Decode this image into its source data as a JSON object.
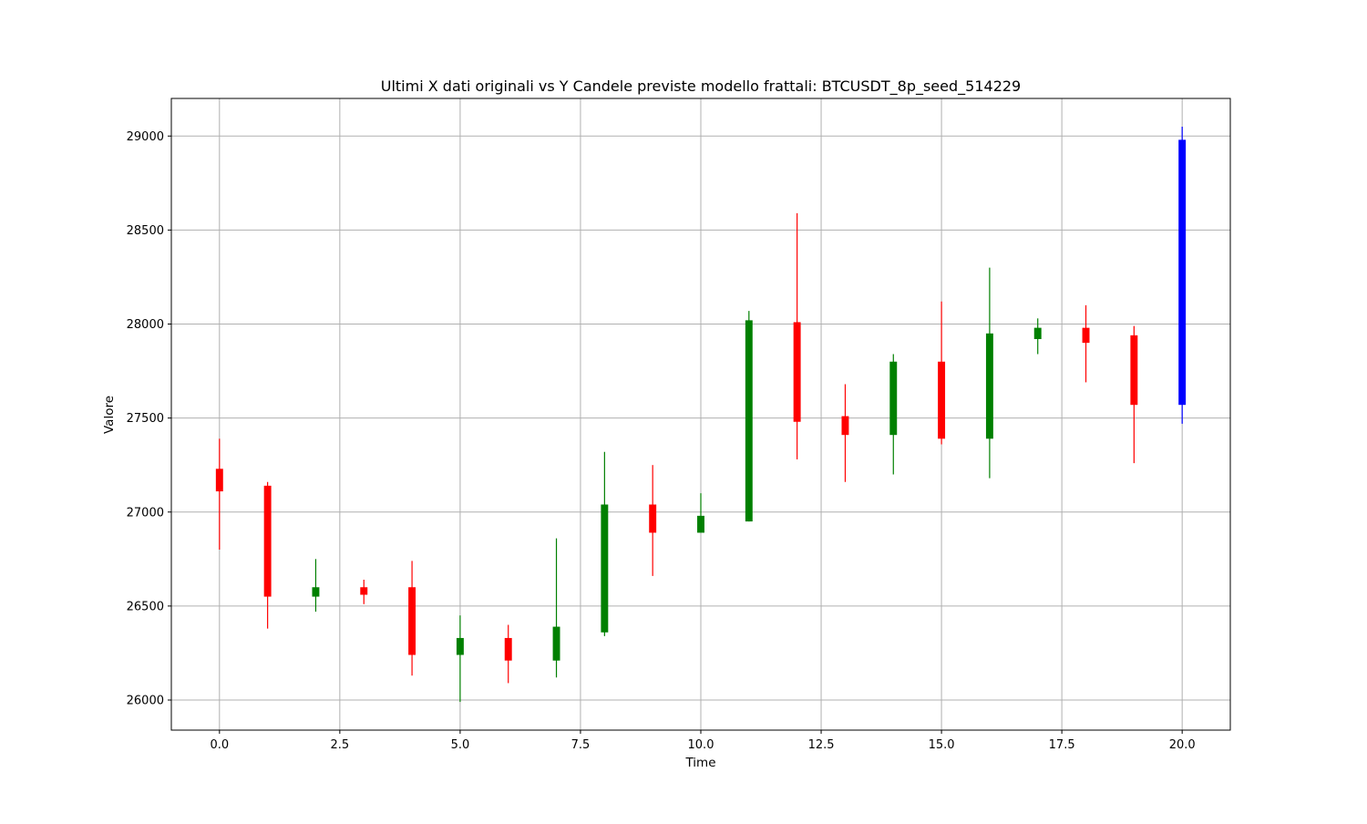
{
  "chart_data": {
    "type": "candlestick",
    "title": "Ultimi X dati originali vs Y Candele previste modello frattali: BTCUSDT_8p_seed_514229",
    "xlabel": "Time",
    "ylabel": "Valore",
    "xlim": [
      -1,
      21
    ],
    "ylim": [
      25840,
      29200
    ],
    "xticks": [
      0.0,
      2.5,
      5.0,
      7.5,
      10.0,
      12.5,
      15.0,
      17.5,
      20.0
    ],
    "xtick_labels": [
      "0.0",
      "2.5",
      "5.0",
      "7.5",
      "10.0",
      "12.5",
      "15.0",
      "17.5",
      "20.0"
    ],
    "yticks": [
      26000,
      26500,
      27000,
      27500,
      28000,
      28500,
      29000
    ],
    "ytick_labels": [
      "26000",
      "26500",
      "27000",
      "27500",
      "28000",
      "28500",
      "29000"
    ],
    "grid": true,
    "colors": {
      "up": "#008000",
      "down": "#ff0000",
      "predicted": "#0000ff",
      "grid": "#b0b0b0"
    },
    "candles": [
      {
        "x": 0,
        "open": 27230,
        "close": 27110,
        "high": 27390,
        "low": 26800,
        "color": "red"
      },
      {
        "x": 1,
        "open": 27140,
        "close": 26550,
        "high": 27160,
        "low": 26380,
        "color": "red"
      },
      {
        "x": 2,
        "open": 26550,
        "close": 26600,
        "high": 26750,
        "low": 26470,
        "color": "green"
      },
      {
        "x": 3,
        "open": 26600,
        "close": 26560,
        "high": 26640,
        "low": 26510,
        "color": "red"
      },
      {
        "x": 4,
        "open": 26600,
        "close": 26240,
        "high": 26740,
        "low": 26130,
        "color": "red"
      },
      {
        "x": 5,
        "open": 26240,
        "close": 26330,
        "high": 26450,
        "low": 25990,
        "color": "green"
      },
      {
        "x": 6,
        "open": 26330,
        "close": 26210,
        "high": 26400,
        "low": 26090,
        "color": "red"
      },
      {
        "x": 7,
        "open": 26210,
        "close": 26390,
        "high": 26860,
        "low": 26120,
        "color": "green"
      },
      {
        "x": 8,
        "open": 26360,
        "close": 27040,
        "high": 27320,
        "low": 26340,
        "color": "green"
      },
      {
        "x": 9,
        "open": 27040,
        "close": 26890,
        "high": 27250,
        "low": 26660,
        "color": "red"
      },
      {
        "x": 10,
        "open": 26890,
        "close": 26980,
        "high": 27100,
        "low": 26900,
        "color": "green"
      },
      {
        "x": 11,
        "open": 26950,
        "close": 28020,
        "high": 28070,
        "low": 26950,
        "color": "green"
      },
      {
        "x": 12,
        "open": 28010,
        "close": 27480,
        "high": 28590,
        "low": 27280,
        "color": "red"
      },
      {
        "x": 13,
        "open": 27510,
        "close": 27410,
        "high": 27680,
        "low": 27160,
        "color": "red"
      },
      {
        "x": 14,
        "open": 27410,
        "close": 27800,
        "high": 27840,
        "low": 27200,
        "color": "green"
      },
      {
        "x": 15,
        "open": 27800,
        "close": 27390,
        "high": 28120,
        "low": 27360,
        "color": "red"
      },
      {
        "x": 16,
        "open": 27390,
        "close": 27950,
        "high": 28300,
        "low": 27180,
        "color": "green"
      },
      {
        "x": 17,
        "open": 27920,
        "close": 27980,
        "high": 28030,
        "low": 27840,
        "color": "green"
      },
      {
        "x": 18,
        "open": 27980,
        "close": 27900,
        "high": 28100,
        "low": 27690,
        "color": "red"
      },
      {
        "x": 19,
        "open": 27940,
        "close": 27570,
        "high": 27990,
        "low": 27260,
        "color": "red"
      },
      {
        "x": 20,
        "open": 27570,
        "close": 28980,
        "high": 29050,
        "low": 27470,
        "color": "blue"
      }
    ]
  }
}
